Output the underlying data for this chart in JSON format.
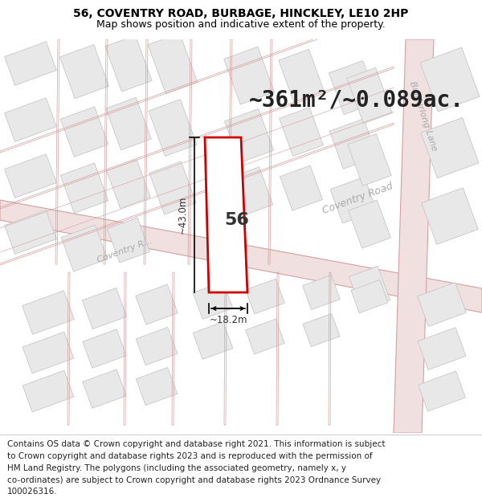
{
  "title_line1": "56, COVENTRY ROAD, BURBAGE, HINCKLEY, LE10 2HP",
  "title_line2": "Map shows position and indicative extent of the property.",
  "area_text": "~361m²/~0.089ac.",
  "property_number": "56",
  "dim_width": "~18.2m",
  "dim_height": "~43.0m",
  "footer_lines": [
    "Contains OS data © Crown copyright and database right 2021. This information is subject",
    "to Crown copyright and database rights 2023 and is reproduced with the permission of",
    "HM Land Registry. The polygons (including the associated geometry, namely x, y",
    "co-ordinates) are subject to Crown copyright and database rights 2023 Ordnance Survey",
    "100026316."
  ],
  "bg_color": "#f7f0f0",
  "road_fill": "#f0e0e0",
  "road_line": "#d4a0a0",
  "building_fill": "#e8e8e8",
  "building_edge": "#c8c8c8",
  "block_line": "#e0b8b8",
  "highlight_fill": "#ffffff",
  "highlight_edge": "#cc0000",
  "road_label_color": "#aaaaaa",
  "title_fontsize": 10,
  "subtitle_fontsize": 9,
  "area_fontsize": 20,
  "footer_fontsize": 7.5
}
